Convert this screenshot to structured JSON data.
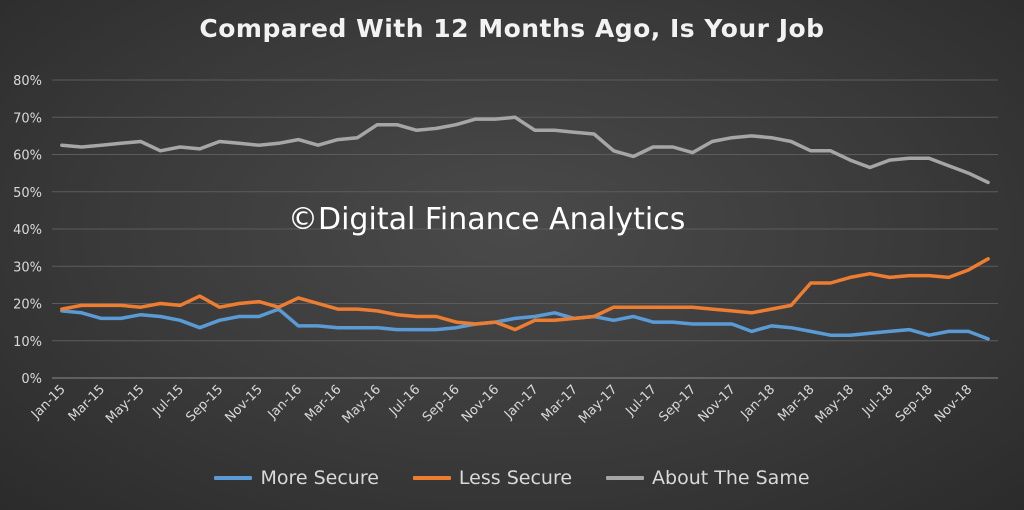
{
  "chart_data": {
    "type": "line",
    "title": "Compared With 12 Months Ago, Is Your Job",
    "watermark": "©Digital Finance Analytics",
    "ylim": [
      0,
      80
    ],
    "yticks": [
      "0%",
      "10%",
      "20%",
      "30%",
      "40%",
      "50%",
      "60%",
      "70%",
      "80%"
    ],
    "grid": true,
    "legend_position": "bottom",
    "x": [
      "Jan-15",
      "Feb-15",
      "Mar-15",
      "Apr-15",
      "May-15",
      "Jun-15",
      "Jul-15",
      "Aug-15",
      "Sep-15",
      "Oct-15",
      "Nov-15",
      "Dec-15",
      "Jan-16",
      "Feb-16",
      "Mar-16",
      "Apr-16",
      "May-16",
      "Jun-16",
      "Jul-16",
      "Aug-16",
      "Sep-16",
      "Oct-16",
      "Nov-16",
      "Dec-16",
      "Jan-17",
      "Feb-17",
      "Mar-17",
      "Apr-17",
      "May-17",
      "Jun-17",
      "Jul-17",
      "Aug-17",
      "Sep-17",
      "Oct-17",
      "Nov-17",
      "Dec-17",
      "Jan-18",
      "Feb-18",
      "Mar-18",
      "Apr-18",
      "May-18",
      "Jun-18",
      "Jul-18",
      "Aug-18",
      "Sep-18",
      "Oct-18",
      "Nov-18",
      "Dec-18"
    ],
    "xtick_labels": [
      "Jan-15",
      "Mar-15",
      "May-15",
      "Jul-15",
      "Sep-15",
      "Nov-15",
      "Jan-16",
      "Mar-16",
      "May-16",
      "Jul-16",
      "Sep-16",
      "Nov-16",
      "Jan-17",
      "Mar-17",
      "May-17",
      "Jul-17",
      "Sep-17",
      "Nov-17",
      "Jan-18",
      "Mar-18",
      "May-18",
      "Jul-18",
      "Sep-18",
      "Nov-18"
    ],
    "series": [
      {
        "name": "More Secure",
        "color": "#5b9bd5",
        "values": [
          18,
          17.5,
          16,
          16,
          17,
          16.5,
          15.5,
          13.5,
          15.5,
          16.5,
          16.5,
          18.5,
          14,
          14,
          13.5,
          13.5,
          13.5,
          13,
          13,
          13,
          13.5,
          14.5,
          15,
          16,
          16.5,
          17.5,
          16,
          16.5,
          15.5,
          16.5,
          15,
          15,
          14.5,
          14.5,
          14.5,
          12.5,
          14,
          13.5,
          12.5,
          11.5,
          11.5,
          12,
          12.5,
          13,
          11.5,
          12.5,
          12.5,
          10.5
        ]
      },
      {
        "name": "Less Secure",
        "color": "#ed7d31",
        "values": [
          18.5,
          19.5,
          19.5,
          19.5,
          19,
          20,
          19.5,
          22,
          19,
          20,
          20.5,
          19,
          21.5,
          20,
          18.5,
          18.5,
          18,
          17,
          16.5,
          16.5,
          15,
          14.5,
          15,
          13,
          15.5,
          15.5,
          16,
          16.5,
          19,
          19,
          19,
          19,
          19,
          18.5,
          18,
          17.5,
          18.5,
          19.5,
          25.5,
          25.5,
          27,
          28,
          27,
          27.5,
          27.5,
          27,
          29,
          32
        ]
      },
      {
        "name": "About The Same",
        "color": "#a6a6a6",
        "values": [
          62.5,
          62,
          62.5,
          63,
          63.5,
          61,
          62,
          61.5,
          63.5,
          63,
          62.5,
          63,
          64,
          62.5,
          64,
          64.5,
          68,
          68,
          66.5,
          67,
          68,
          69.5,
          69.5,
          70,
          66.5,
          66.5,
          66,
          65.5,
          61,
          59.5,
          62,
          62,
          60.5,
          63.5,
          64.5,
          65,
          64.5,
          63.5,
          61,
          61,
          58.5,
          56.5,
          58.5,
          59,
          59,
          57,
          55,
          52.5
        ]
      }
    ]
  }
}
